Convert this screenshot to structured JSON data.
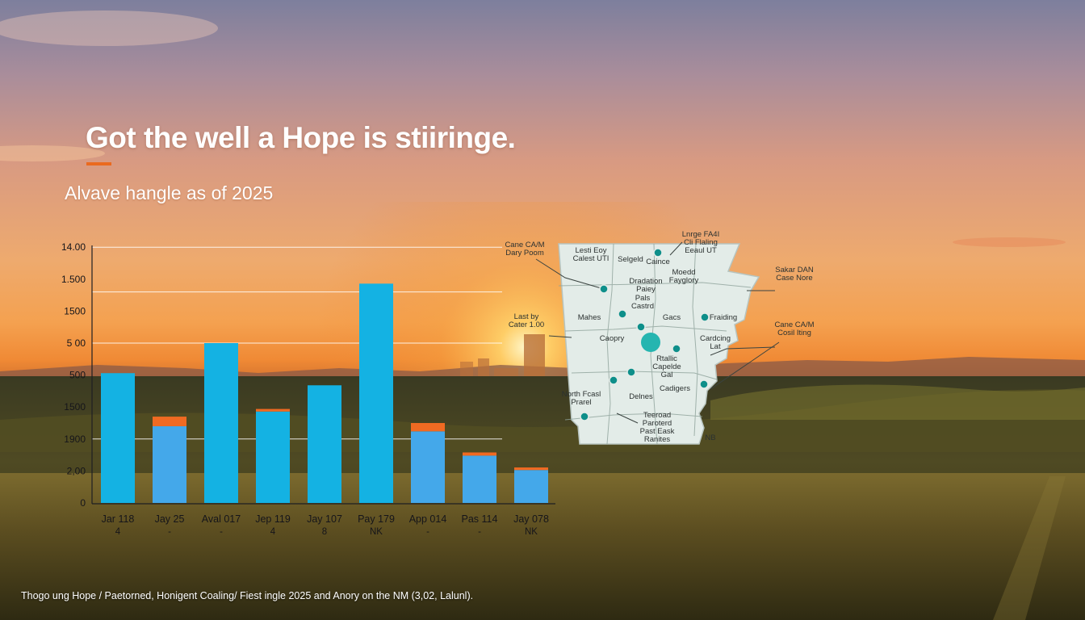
{
  "title": "Got the well a Hope is stiiringe.",
  "subtitle": "Alvave hangle as of 2025",
  "caption": "Thogo ung Hope / Paetorned, Honigent Coaling/ Fiest ingle 2025 and Anory on the NM (3,02, Lalunl).",
  "colors": {
    "bar_primary": "#14b2e3",
    "bar_secondary": "#44a8ea",
    "bar_top": "#f06a22",
    "accent": "#ea6a1f",
    "map_fill": "#e3ece8",
    "map_marker": "#0e8f8a",
    "map_hub": "#25b5b0"
  },
  "chart_data": {
    "type": "bar",
    "title": "",
    "xlabel": "",
    "ylabel": "",
    "y_tick_labels": [
      "0",
      "2,00",
      "1900",
      "1500",
      "500",
      "5 00",
      "1500",
      "1.500",
      "14.00"
    ],
    "ylim": [
      0,
      8
    ],
    "grid": true,
    "categories": [
      [
        "Jar 118",
        "4"
      ],
      [
        "Jay 25",
        "-"
      ],
      [
        "Aval 017",
        "-"
      ],
      [
        "Jep 119",
        "4"
      ],
      [
        "Jay 107",
        "8"
      ],
      [
        "Pay 179",
        "NK"
      ],
      [
        "App 014",
        "-"
      ],
      [
        "Pas 114",
        "-"
      ],
      [
        "Jay 078",
        "NK"
      ]
    ],
    "series": [
      {
        "values": [
          4.06,
          2.4,
          5.0,
          2.86,
          3.68,
          6.86,
          2.24,
          1.48,
          1.03
        ]
      },
      {
        "values": [
          0.0,
          0.3,
          0.0,
          0.08,
          0.0,
          0.0,
          0.26,
          0.1,
          0.08
        ]
      }
    ],
    "series_styles": [
      "primary",
      "secondary",
      "primary",
      "primary",
      "primary",
      "primary",
      "secondary",
      "secondary",
      "secondary"
    ]
  },
  "map": {
    "labels": [
      {
        "id": "label-large-fa4",
        "lines": [
          "Lnrge FA4I",
          "Cli Flaling",
          "Eeaul UT"
        ]
      },
      {
        "id": "label-cane-cam",
        "lines": [
          "Cane CA/M",
          "Dary Poom"
        ]
      },
      {
        "id": "label-lestl",
        "lines": [
          "Lesti Eoy",
          "Calest UTI"
        ]
      },
      {
        "id": "label-selgeld",
        "lines": [
          "Selgeld"
        ]
      },
      {
        "id": "label-caince",
        "lines": [
          "Caince"
        ]
      },
      {
        "id": "label-moedd",
        "lines": [
          "Moedd",
          "Fayglory"
        ]
      },
      {
        "id": "label-dradation",
        "lines": [
          "Dradation",
          "Paiey"
        ]
      },
      {
        "id": "label-pals",
        "lines": [
          "Pals",
          "Castrd"
        ]
      },
      {
        "id": "label-mahes",
        "lines": [
          "Mahes"
        ]
      },
      {
        "id": "label-gacs",
        "lines": [
          "Gacs"
        ]
      },
      {
        "id": "label-fraiding",
        "lines": [
          "Fraiding"
        ]
      },
      {
        "id": "label-last-by",
        "lines": [
          "Last by",
          "Cater 1.00"
        ]
      },
      {
        "id": "label-caopry",
        "lines": [
          "Caopry"
        ]
      },
      {
        "id": "label-cardcing",
        "lines": [
          "Cardcing",
          "Lat"
        ]
      },
      {
        "id": "label-rtallic",
        "lines": [
          "Rtallic",
          "Capelde",
          "Gal"
        ]
      },
      {
        "id": "label-north-fcasl",
        "lines": [
          "North Fcasl",
          "Prarel"
        ]
      },
      {
        "id": "label-delnes",
        "lines": [
          "Delnes"
        ]
      },
      {
        "id": "label-cadigers",
        "lines": [
          "Cadigers"
        ]
      },
      {
        "id": "label-tearoad",
        "lines": [
          "Teeroad",
          "Paroterd",
          "Past Eask",
          "Ranites"
        ]
      },
      {
        "id": "label-sakar",
        "lines": [
          "Sakar DAN",
          "Case Nore"
        ]
      },
      {
        "id": "label-cane-cam-2",
        "lines": [
          "Cane CA/M",
          "Cosil Iting"
        ]
      },
      {
        "id": "label-nb",
        "lines": [
          "NB"
        ]
      }
    ]
  }
}
